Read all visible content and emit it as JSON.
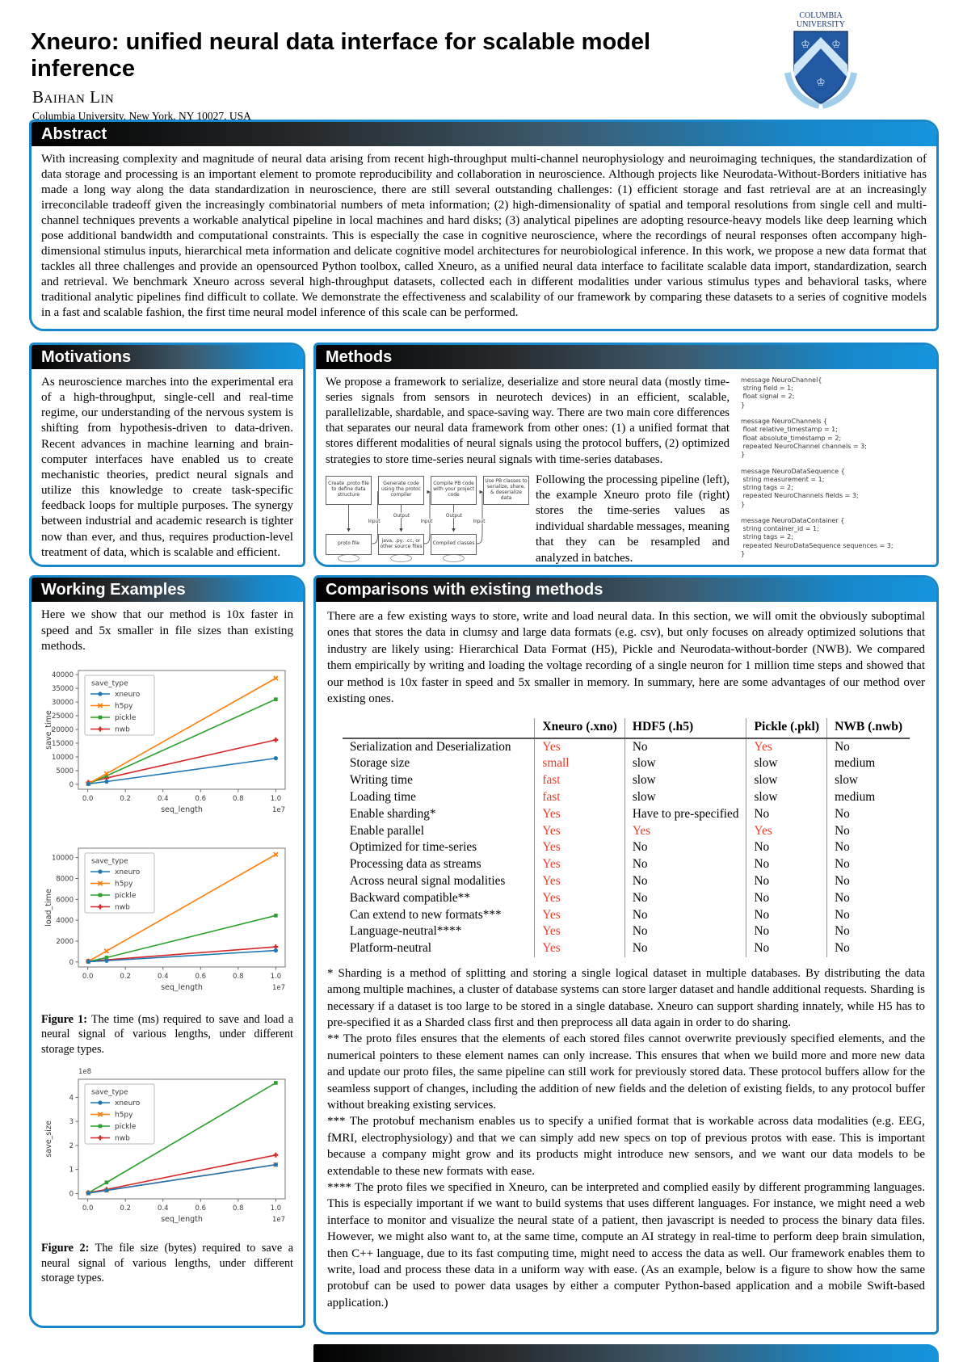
{
  "header": {
    "title": "Xneuro: unified neural data interface for scalable model inference",
    "author": "Baihan Lin",
    "affiliation": "Columbia University, New York, NY 10027, USA",
    "logo_line1": "COLUMBIA",
    "logo_line2": "UNIVERSITY"
  },
  "abstract": {
    "heading": "Abstract",
    "body": "With increasing complexity and magnitude of neural data arising from recent high-throughput multi-channel neurophysiology and neuroimaging techniques, the standardization of data storage and processing is an important element to promote reproducibility and collaboration in neuroscience. Although projects like Neurodata-Without-Borders initiative has made a long way along the data standardization in neuroscience, there are still several outstanding challenges: (1) efficient storage and fast retrieval are at an increasingly irreconcilable tradeoff given the increasingly combinatorial numbers of meta information; (2) high-dimensionality of spatial and temporal resolutions from single cell and multi-channel techniques prevents a workable analytical pipeline in local machines and hard disks; (3) analytical pipelines are adopting resource-heavy models like deep learning which pose additional bandwidth and computational constraints. This is especially the case in cognitive neuroscience, where the recordings of neural responses often accompany high-dimensional stimulus inputs, hierarchical meta information and delicate cognitive model architectures for neurobiological inference. In this work, we propose a new data format that tackles all three challenges and provide an opensourced Python toolbox, called Xneuro, as a unified neural data interface to facilitate scalable data import, standardization, search and retrieval. We benchmark Xneuro across several high-throughput datasets, collected each in different modalities under various stimulus types and behavioral tasks, where traditional analytic pipelines find difficult to collate. We demonstrate the effectiveness and scalability of our framework by comparing these datasets to a series of cognitive models in a fast and scalable fashion, the first time neural model inference of this scale can be performed."
  },
  "motivations": {
    "heading": "Motivations",
    "body": "As neuroscience marches into the experimental era of a high-throughput, single-cell and real-time regime, our understanding of the nervous system is shifting from hypothesis-driven to data-driven. Recent advances in machine learning and brain-computer interfaces have enabled us to create mechanistic theories, predict neural signals and utilize this knowledge to create task-specific feedback loops for multiple purposes. The synergy between industrial and academic research is tighter now than ever, and thus, requires production-level treatment of data, which is scalable and efficient."
  },
  "methods": {
    "heading": "Methods",
    "para1": "We propose a framework to serialize, deserialize and store neural data (mostly time-series signals from sensors in neurotech devices) in an efficient, scalable, parallelizable, shardable, and space-saving way. There are two main core differences that separates our neural data framework from other ones: (1) a unified format that stores different modalities of neural signals using the protocol buffers, (2) optimized strategies to store time-series neural signals with time-series databases.",
    "para2": "Following the processing pipeline (left), the example Xneuro proto file (right) stores the time-series values as individual shardable messages, meaning that they can be resampled and analyzed in batches.",
    "flowchart": {
      "top_boxes": [
        "Create .proto file to define data structure",
        "Generate code using the protoc compiler",
        "Compile PB code with your project code",
        "Use PB classes to serialize, share, & deserialize data"
      ],
      "bottom_boxes": [
        "proto file",
        "java, .py, .cc, or other source files",
        "Compiled classes"
      ],
      "edge_labels": [
        "Input",
        "Output",
        "Input",
        "Output",
        "Input"
      ]
    },
    "proto_code": "message NeuroChannel{\n string field = 1;\n float signal = 2;\n}\n\nmessage NeuroChannels {\n float relative_timestamp = 1;\n float absolute_timestamp = 2;\n repeated NeuroChannel channels = 3;\n}\n\nmessage NeuroDataSequence {\n string measurement = 1;\n string tags = 2;\n repeated NeuroChannels fields = 3;\n}\n\nmessage NeuroDataContainer {\n string container_id = 1;\n string tags = 2;\n repeated NeuroDataSequence sequences = 3;\n}"
  },
  "working_examples": {
    "heading": "Working Examples",
    "body": "Here we show that our method is 10x faster in speed and 5x smaller in file sizes than existing methods.",
    "figure1_label": "Figure 1:",
    "figure1_caption": " The time (ms) required to save and load a neural signal of various lengths, under different storage types.",
    "figure2_label": "Figure 2:",
    "figure2_caption": " The file size (bytes) required to save a neural signal of various lengths, under different storage types."
  },
  "comparisons": {
    "heading": "Comparisons with existing methods",
    "intro": "There are a few existing ways to store, write and load neural data. In this section, we will omit the obviously suboptimal ones that stores the data in clumsy and large data formats (e.g. csv), but only focuses on already optimized solutions that industry are likely using: Hierarchical Data Format (H5), Pickle and Neurodata-without-border (NWB). We compared them empirically by writing and loading the voltage recording of a single neuron for 1 million time steps and showed that our method is 10x faster in speed and 5x smaller in memory. In summary, here are some advantages of our method over existing ones.",
    "table": {
      "columns": [
        "",
        "Xneuro (.xno)",
        "HDF5 (.h5)",
        "Pickle (.pkl)",
        "NWB (.nwb)"
      ],
      "rows": [
        {
          "label": "Serialization and Deserialization",
          "cells": [
            {
              "text": "Yes",
              "hl": true
            },
            {
              "text": "No",
              "hl": false
            },
            {
              "text": "Yes",
              "hl": true
            },
            {
              "text": "No",
              "hl": false
            }
          ]
        },
        {
          "label": "Storage size",
          "cells": [
            {
              "text": "small",
              "hl": true
            },
            {
              "text": "slow",
              "hl": false
            },
            {
              "text": "slow",
              "hl": false
            },
            {
              "text": "medium",
              "hl": false
            }
          ]
        },
        {
          "label": "Writing time",
          "cells": [
            {
              "text": "fast",
              "hl": true
            },
            {
              "text": "slow",
              "hl": false
            },
            {
              "text": "slow",
              "hl": false
            },
            {
              "text": "slow",
              "hl": false
            }
          ]
        },
        {
          "label": "Loading time",
          "cells": [
            {
              "text": "fast",
              "hl": true
            },
            {
              "text": "slow",
              "hl": false
            },
            {
              "text": "slow",
              "hl": false
            },
            {
              "text": "medium",
              "hl": false
            }
          ]
        },
        {
          "label": "Enable sharding*",
          "cells": [
            {
              "text": "Yes",
              "hl": true
            },
            {
              "text": "Have to pre-specified",
              "hl": false
            },
            {
              "text": "No",
              "hl": false
            },
            {
              "text": "No",
              "hl": false
            }
          ]
        },
        {
          "label": "Enable parallel",
          "cells": [
            {
              "text": "Yes",
              "hl": true
            },
            {
              "text": "Yes",
              "hl": true
            },
            {
              "text": "Yes",
              "hl": true
            },
            {
              "text": "No",
              "hl": false
            }
          ]
        },
        {
          "label": "Optimized for time-series",
          "cells": [
            {
              "text": "Yes",
              "hl": true
            },
            {
              "text": "No",
              "hl": false
            },
            {
              "text": "No",
              "hl": false
            },
            {
              "text": "No",
              "hl": false
            }
          ]
        },
        {
          "label": "Processing data as streams",
          "cells": [
            {
              "text": "Yes",
              "hl": true
            },
            {
              "text": "No",
              "hl": false
            },
            {
              "text": "No",
              "hl": false
            },
            {
              "text": "No",
              "hl": false
            }
          ]
        },
        {
          "label": "Across neural signal modalities",
          "cells": [
            {
              "text": "Yes",
              "hl": true
            },
            {
              "text": "No",
              "hl": false
            },
            {
              "text": "No",
              "hl": false
            },
            {
              "text": "No",
              "hl": false
            }
          ]
        },
        {
          "label": "Backward compatible**",
          "cells": [
            {
              "text": "Yes",
              "hl": true
            },
            {
              "text": "No",
              "hl": false
            },
            {
              "text": "No",
              "hl": false
            },
            {
              "text": "No",
              "hl": false
            }
          ]
        },
        {
          "label": "Can extend to new formats***",
          "cells": [
            {
              "text": "Yes",
              "hl": true
            },
            {
              "text": "No",
              "hl": false
            },
            {
              "text": "No",
              "hl": false
            },
            {
              "text": "No",
              "hl": false
            }
          ]
        },
        {
          "label": "Language-neutral****",
          "cells": [
            {
              "text": "Yes",
              "hl": true
            },
            {
              "text": "No",
              "hl": false
            },
            {
              "text": "No",
              "hl": false
            },
            {
              "text": "No",
              "hl": false
            }
          ]
        },
        {
          "label": "Platform-neutral",
          "cells": [
            {
              "text": "Yes",
              "hl": true
            },
            {
              "text": "No",
              "hl": false
            },
            {
              "text": "No",
              "hl": false
            },
            {
              "text": "No",
              "hl": false
            }
          ]
        }
      ]
    },
    "footnotes": [
      "* Sharding is a method of splitting and storing a single logical dataset in multiple databases. By distributing the data among multiple machines, a cluster of database systems can store larger dataset and handle additional requests. Sharding is necessary if a dataset is too large to be stored in a single database. Xneuro can support sharding innately, while H5 has to pre-specified it as a Sharded class first and then preprocess all data again in order to do sharing.",
      "** The proto files ensures that the elements of each stored files cannot overwrite previously specified elements, and the numerical pointers to these element names can only increase. This ensures that when we build more and more new data and update our proto files, the same pipeline can still work for previously stored data. These protocol buffers allow for the seamless support of changes, including the addition of new fields and the deletion of existing fields, to any protocol buffer without breaking existing services.",
      "*** The protobuf mechanism enables us to specify a unified format that is workable across data modalities (e.g. EEG, fMRI, electrophysiology) and that we can simply add new specs on top of previous protos with ease. This is important because a company might grow and its products might introduce new sensors, and we want our data models to be extendable to these new formats with ease.",
      "**** The proto files we specified in Xneuro, can be interpreted and complied easily by different programming languages. This is especially important if we want to build systems that uses different languages. For instance, we might need a web interface to monitor and visualize the neural state of a patient, then javascript is needed to process the binary data files. However, we might also want to, at the same time, compute an AI strategy in real-time to perform deep brain simulation, then C++ language, due to its fast computing time, might need to access the data as well. Our framework enables them to write, load and process these data in a uniform way with ease. (As an example, below is a figure to show how the same protobuf can be used to power data usages by either a computer Python-based application and a mobile Swift-based application.)"
    ]
  },
  "chart_data": [
    {
      "type": "line",
      "title": "",
      "xlabel": "seq_length",
      "ylabel": "save_time",
      "x_multiplier_label": "1e7",
      "y_multiplier_label": null,
      "legend_title": "save_type",
      "legend_position": "upper left",
      "grid": false,
      "xlim": [
        -500000,
        10500000
      ],
      "ylim": [
        -1800,
        41500
      ],
      "xticks": {
        "values": [
          0,
          2000000,
          4000000,
          6000000,
          8000000,
          10000000
        ],
        "labels": [
          "0.0",
          "0.2",
          "0.4",
          "0.6",
          "0.8",
          "1.0"
        ]
      },
      "yticks": {
        "values": [
          0,
          5000,
          10000,
          15000,
          20000,
          25000,
          30000,
          35000,
          40000
        ],
        "labels": [
          "0",
          "5000",
          "10000",
          "15000",
          "20000",
          "25000",
          "30000",
          "35000",
          "40000"
        ]
      },
      "x": [
        30000,
        1000000,
        10000000
      ],
      "series": [
        {
          "name": "xneuro",
          "color": "#1f77b4",
          "marker": "circle",
          "values": [
            150,
            1000,
            9500
          ]
        },
        {
          "name": "h5py",
          "color": "#ff7f0e",
          "marker": "x",
          "values": [
            250,
            3900,
            38700
          ]
        },
        {
          "name": "pickle",
          "color": "#2ca02c",
          "marker": "square",
          "values": [
            150,
            3100,
            31000
          ]
        },
        {
          "name": "nwb",
          "color": "#d62728",
          "marker": "plus",
          "values": [
            700,
            2300,
            16200
          ]
        }
      ]
    },
    {
      "type": "line",
      "title": "",
      "xlabel": "seq_length",
      "ylabel": "load_time",
      "x_multiplier_label": "1e7",
      "y_multiplier_label": null,
      "legend_title": "save_type",
      "legend_position": "upper left",
      "grid": false,
      "xlim": [
        -500000,
        10500000
      ],
      "ylim": [
        -480,
        10900
      ],
      "xticks": {
        "values": [
          0,
          2000000,
          4000000,
          6000000,
          8000000,
          10000000
        ],
        "labels": [
          "0.0",
          "0.2",
          "0.4",
          "0.6",
          "0.8",
          "1.0"
        ]
      },
      "yticks": {
        "values": [
          0,
          2000,
          4000,
          6000,
          8000,
          10000
        ],
        "labels": [
          "0",
          "2000",
          "4000",
          "6000",
          "8000",
          "10000"
        ]
      },
      "x": [
        30000,
        1000000,
        10000000
      ],
      "series": [
        {
          "name": "xneuro",
          "color": "#1f77b4",
          "marker": "circle",
          "values": [
            30,
            120,
            1100
          ]
        },
        {
          "name": "h5py",
          "color": "#ff7f0e",
          "marker": "x",
          "values": [
            60,
            1050,
            10300
          ]
        },
        {
          "name": "pickle",
          "color": "#2ca02c",
          "marker": "square",
          "values": [
            40,
            420,
            4450
          ]
        },
        {
          "name": "nwb",
          "color": "#d62728",
          "marker": "plus",
          "values": [
            80,
            200,
            1450
          ]
        }
      ]
    },
    {
      "type": "line",
      "title": "",
      "xlabel": "seq_length",
      "ylabel": "save_size",
      "x_multiplier_label": "1e7",
      "y_multiplier_label": "1e8",
      "legend_title": "save_type",
      "legend_position": "upper left",
      "grid": false,
      "xlim": [
        -500000,
        10500000
      ],
      "ylim": [
        -22000000,
        475000000
      ],
      "xticks": {
        "values": [
          0,
          2000000,
          4000000,
          6000000,
          8000000,
          10000000
        ],
        "labels": [
          "0.0",
          "0.2",
          "0.4",
          "0.6",
          "0.8",
          "1.0"
        ]
      },
      "yticks": {
        "values": [
          0,
          100000000,
          200000000,
          300000000,
          400000000
        ],
        "labels": [
          "0",
          "1",
          "2",
          "3",
          "4"
        ]
      },
      "x": [
        30000,
        1000000,
        10000000
      ],
      "series": [
        {
          "name": "xneuro",
          "color": "#1f77b4",
          "marker": "circle",
          "values": [
            1500000,
            13000000,
            120000000
          ]
        },
        {
          "name": "h5py",
          "color": "#ff7f0e",
          "marker": "x",
          "values": [
            1500000,
            13000000,
            120000000
          ]
        },
        {
          "name": "pickle",
          "color": "#2ca02c",
          "marker": "square",
          "values": [
            3000000,
            46000000,
            460000000
          ]
        },
        {
          "name": "nwb",
          "color": "#d62728",
          "marker": "plus",
          "values": [
            3500000,
            17000000,
            160000000
          ]
        }
      ]
    }
  ],
  "colors": {
    "accent_blue": "#1787c9",
    "table_highlight_red": "#e8402f",
    "series_xneuro": "#1f77b4",
    "series_h5py": "#ff7f0e",
    "series_pickle": "#2ca02c",
    "series_nwb": "#d62728"
  }
}
